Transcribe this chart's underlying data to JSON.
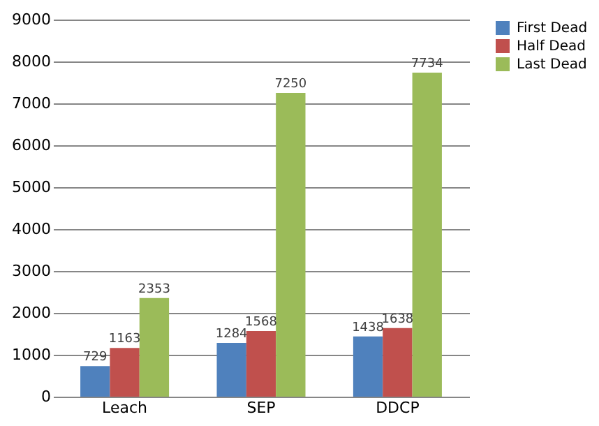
{
  "chart_data": {
    "type": "bar",
    "categories": [
      "Leach",
      "SEP",
      "DDCP"
    ],
    "series": [
      {
        "name": "First Dead",
        "color": "#4f81bd",
        "values": [
          729,
          1284,
          1438
        ]
      },
      {
        "name": "Half Dead",
        "color": "#c0504d",
        "values": [
          1163,
          1568,
          1638
        ]
      },
      {
        "name": "Last Dead",
        "color": "#9bbb59",
        "values": [
          2353,
          7250,
          7734
        ]
      }
    ],
    "ylim": [
      0,
      9000
    ],
    "yticks": [
      0,
      1000,
      2000,
      3000,
      4000,
      5000,
      6000,
      7000,
      8000,
      9000
    ],
    "grid": "y",
    "legend": "right",
    "data_labels": true
  }
}
